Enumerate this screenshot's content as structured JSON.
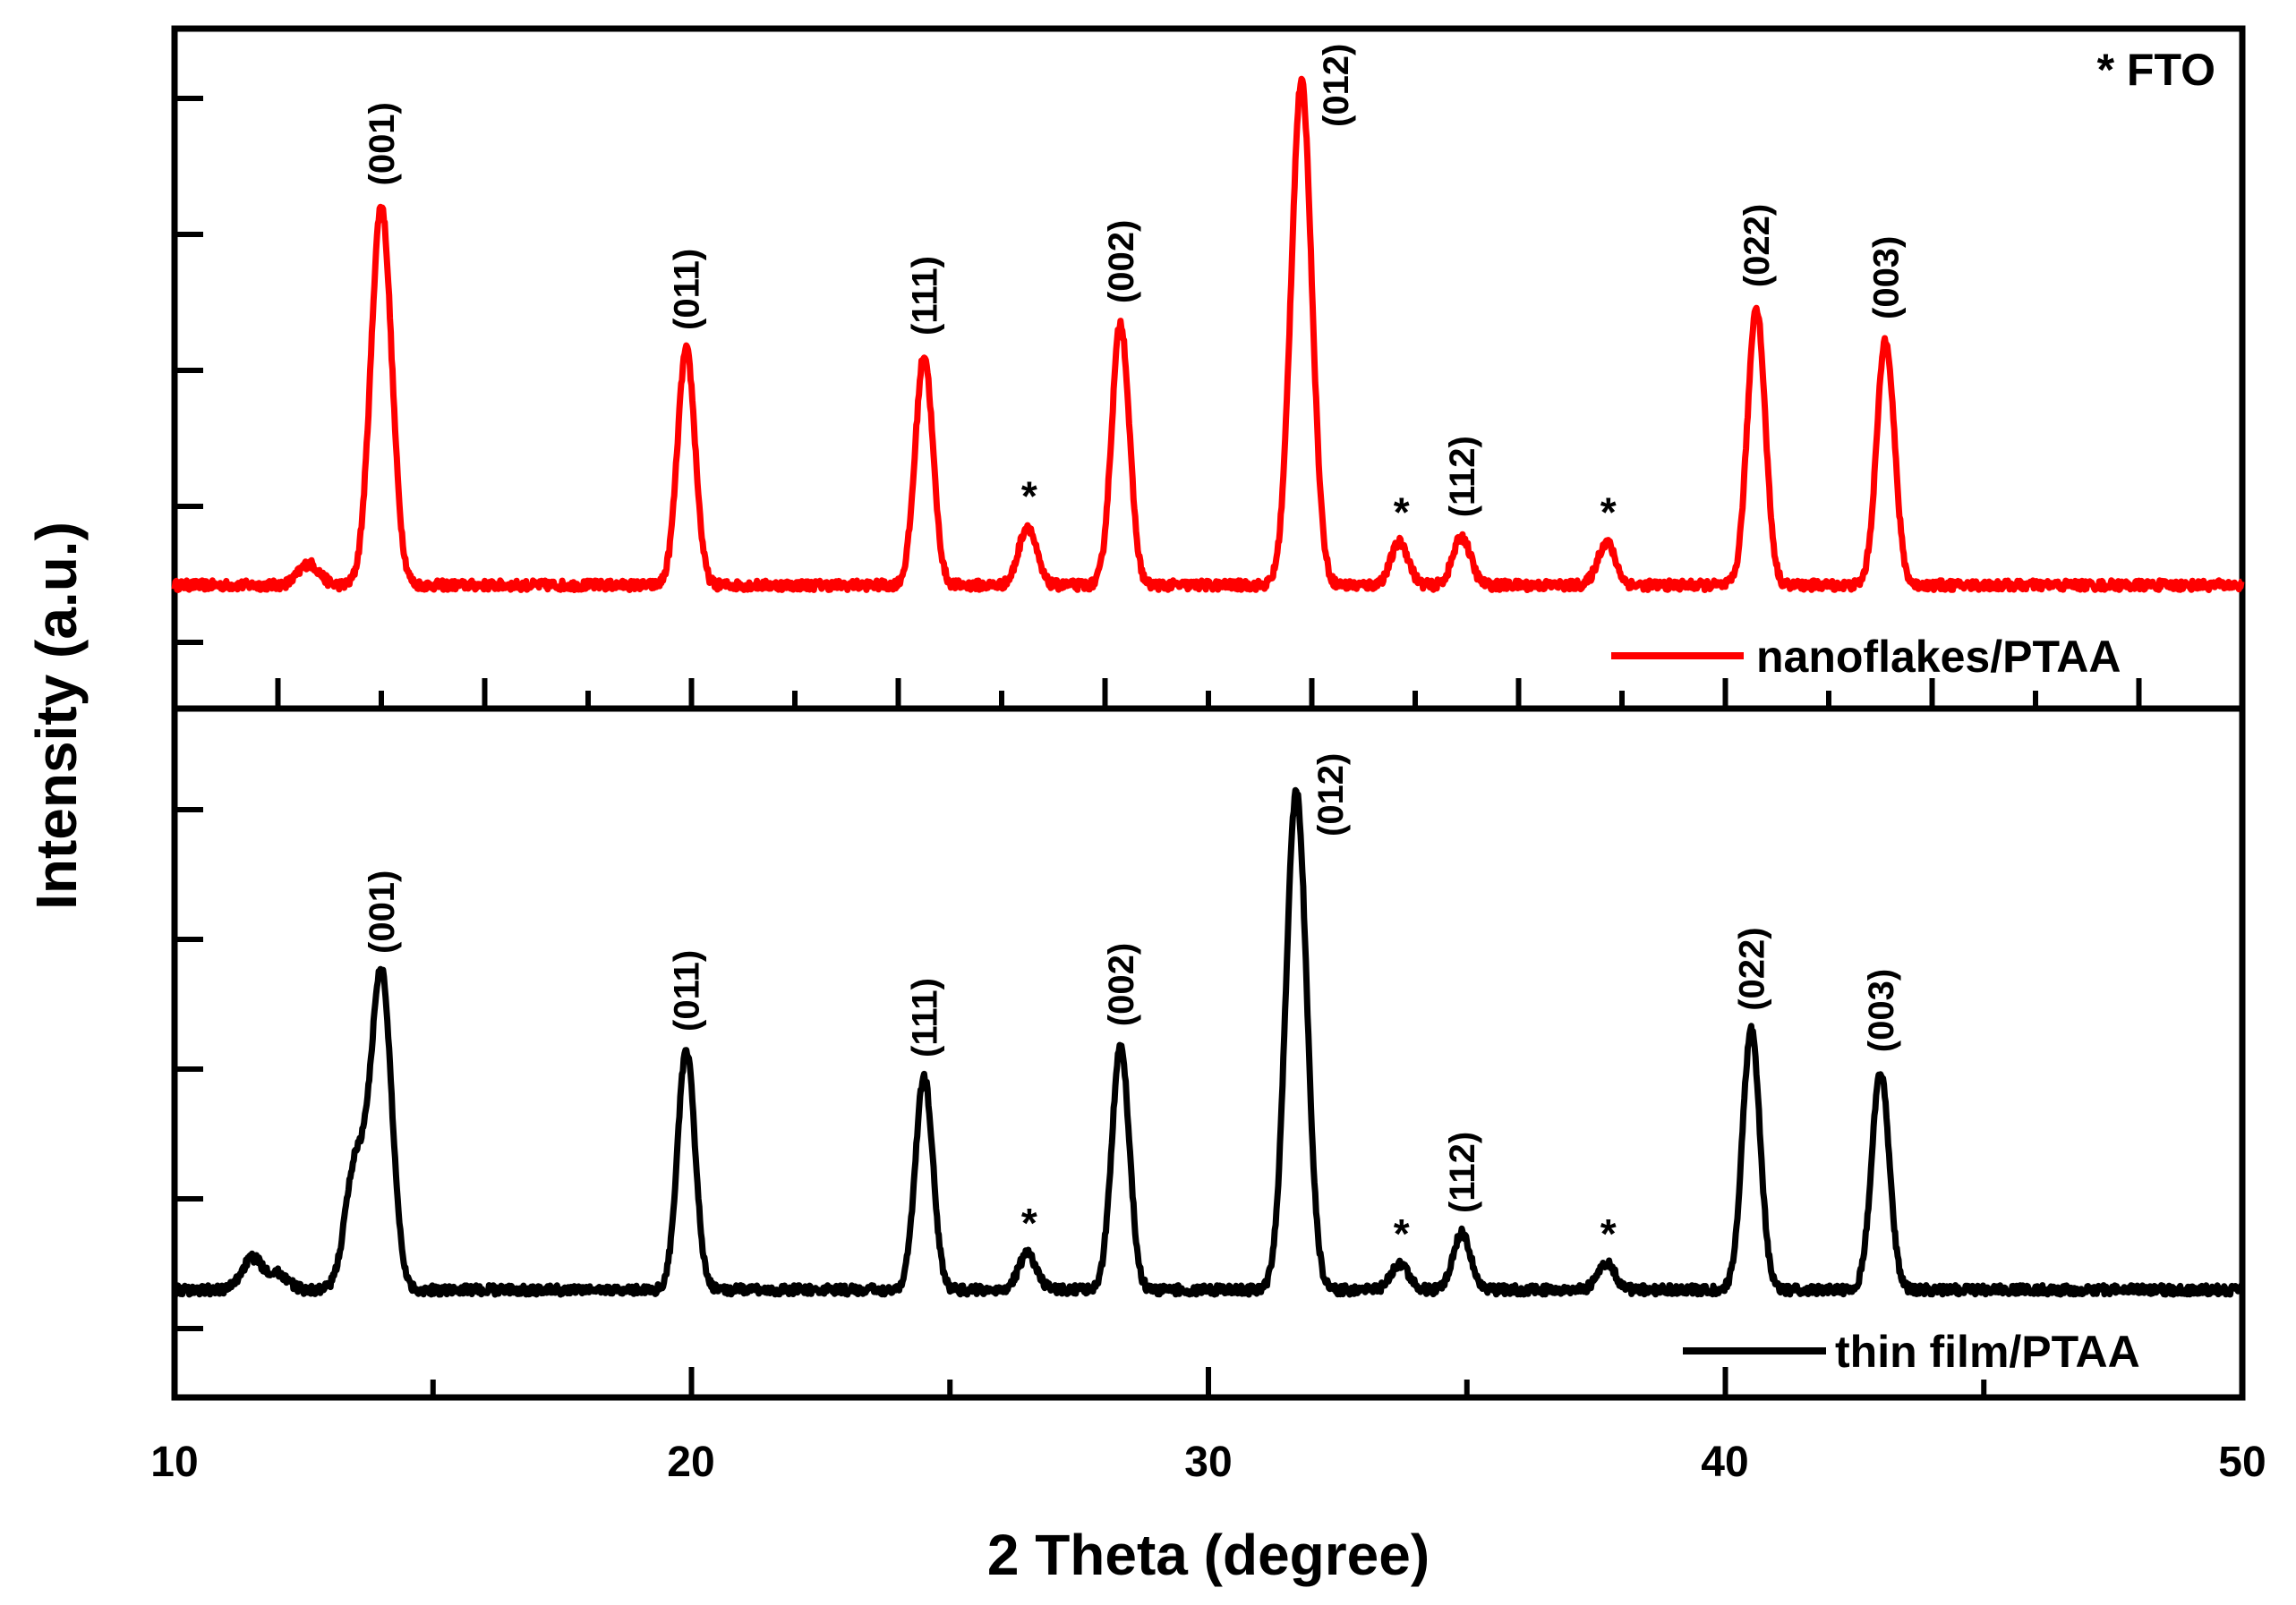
{
  "chart_data": {
    "type": "line",
    "xlabel": "2 Theta (degree)",
    "ylabel": "Intensity (a.u.)",
    "xlim": [
      10,
      50
    ],
    "x_ticks": [
      "10",
      "20",
      "30",
      "40",
      "50"
    ],
    "note": "* FTO",
    "panels": [
      {
        "name": "nanoflakes/PTAA",
        "legend": "nanoflakes/PTAA",
        "color": "#ff0000",
        "baseline": 0.06,
        "peaks": [
          {
            "x": 11.5,
            "y": 0.06,
            "label": ""
          },
          {
            "x": 12.6,
            "y": 0.1,
            "label": ""
          },
          {
            "x": 14.0,
            "y": 0.77,
            "label": "(001)"
          },
          {
            "x": 19.9,
            "y": 0.5,
            "label": "(011)"
          },
          {
            "x": 24.5,
            "y": 0.49,
            "label": "(111)"
          },
          {
            "x": 26.5,
            "y": 0.17,
            "label": "*"
          },
          {
            "x": 28.3,
            "y": 0.55,
            "label": "(002)"
          },
          {
            "x": 31.8,
            "y": 1.0,
            "label": "(012)"
          },
          {
            "x": 33.7,
            "y": 0.14,
            "label": "*"
          },
          {
            "x": 34.9,
            "y": 0.15,
            "label": "(112)"
          },
          {
            "x": 37.7,
            "y": 0.14,
            "label": "*"
          },
          {
            "x": 40.6,
            "y": 0.58,
            "label": "(022)"
          },
          {
            "x": 43.1,
            "y": 0.52,
            "label": "(003)"
          }
        ]
      },
      {
        "name": "thin film/PTAA",
        "legend": "thin film/PTAA",
        "color": "#000000",
        "baseline": 0.04,
        "peaks": [
          {
            "x": 11.5,
            "y": 0.1,
            "label": ""
          },
          {
            "x": 12.0,
            "y": 0.07,
            "label": ""
          },
          {
            "x": 13.5,
            "y": 0.28,
            "label": ""
          },
          {
            "x": 14.0,
            "y": 0.65,
            "label": "(001)"
          },
          {
            "x": 19.9,
            "y": 0.5,
            "label": "(011)"
          },
          {
            "x": 24.5,
            "y": 0.45,
            "label": "(111)"
          },
          {
            "x": 26.5,
            "y": 0.11,
            "label": "*"
          },
          {
            "x": 28.3,
            "y": 0.51,
            "label": "(002)"
          },
          {
            "x": 31.7,
            "y": 1.0,
            "label": "(012)"
          },
          {
            "x": 33.7,
            "y": 0.09,
            "label": "*"
          },
          {
            "x": 34.9,
            "y": 0.15,
            "label": "(112)"
          },
          {
            "x": 37.7,
            "y": 0.09,
            "label": "*"
          },
          {
            "x": 40.5,
            "y": 0.54,
            "label": "(022)"
          },
          {
            "x": 43.0,
            "y": 0.46,
            "label": "(003)"
          }
        ]
      }
    ]
  }
}
